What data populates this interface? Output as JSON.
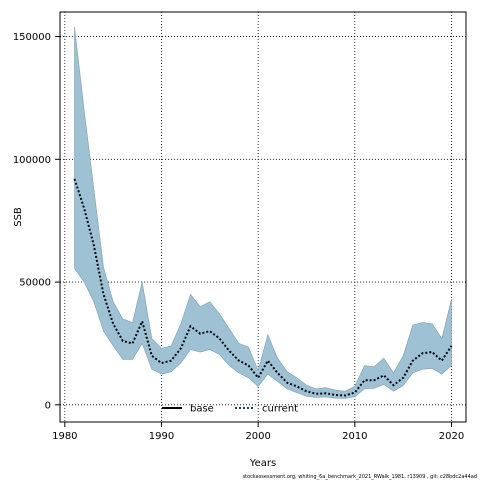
{
  "chart_data": {
    "type": "line",
    "xlabel": "Years",
    "ylabel": "SSB",
    "xlim": [
      1979.5,
      2021.5
    ],
    "ylim": [
      -7000,
      160000
    ],
    "x_ticks": [
      1980,
      1990,
      2000,
      2010,
      2020
    ],
    "y_ticks": [
      0,
      50000,
      100000,
      150000
    ],
    "x_tick_labels": [
      "1980",
      "1990",
      "2000",
      "2010",
      "2020"
    ],
    "y_tick_labels": [
      "0",
      "50000",
      "100000",
      "150000"
    ],
    "grid": true,
    "legend_position": "bottom-center",
    "legend": [
      {
        "label": "base",
        "style": "solid",
        "color": "#000000"
      },
      {
        "label": "current",
        "style": "dotted",
        "color": "#1f3f66"
      }
    ],
    "band_color": "#9fc1d4",
    "x": [
      1981,
      1982,
      1983,
      1984,
      1985,
      1986,
      1987,
      1988,
      1989,
      1990,
      1991,
      1992,
      1993,
      1994,
      1995,
      1996,
      1997,
      1998,
      1999,
      2000,
      2001,
      2002,
      2003,
      2004,
      2005,
      2006,
      2007,
      2008,
      2009,
      2010,
      2011,
      2012,
      2013,
      2014,
      2015,
      2016,
      2017,
      2018,
      2019,
      2020
    ],
    "series": [
      {
        "name": "current",
        "values": [
          92000,
          80000,
          65000,
          45000,
          33000,
          26000,
          25000,
          34000,
          20000,
          17000,
          18000,
          23000,
          32000,
          29000,
          30000,
          27000,
          22000,
          18000,
          16000,
          11000,
          18000,
          13000,
          9000,
          7500,
          5500,
          4500,
          4700,
          4000,
          3800,
          5000,
          10000,
          10000,
          12000,
          8000,
          11000,
          18000,
          21000,
          21500,
          18000,
          24000
        ]
      }
    ],
    "band": {
      "upper": [
        154000,
        120000,
        88000,
        56000,
        42000,
        35000,
        33500,
        50000,
        27000,
        23000,
        24000,
        33000,
        45000,
        40000,
        42000,
        37000,
        31000,
        25000,
        23500,
        14000,
        28500,
        19000,
        13500,
        11000,
        8000,
        6500,
        7000,
        6000,
        5500,
        7500,
        16000,
        15500,
        19000,
        13000,
        20000,
        32500,
        33500,
        33000,
        27000,
        43000
      ],
      "lower": [
        55500,
        50000,
        42000,
        30000,
        24000,
        18500,
        18500,
        25000,
        14500,
        12500,
        13500,
        17000,
        22500,
        21500,
        22500,
        20500,
        16000,
        13000,
        11000,
        7500,
        12500,
        9500,
        6500,
        5000,
        3500,
        3000,
        3200,
        2700,
        2600,
        3300,
        6500,
        6700,
        8300,
        5500,
        7800,
        13000,
        14500,
        14800,
        12500,
        16000
      ]
    },
    "footer_note": "stockassessment.org, whiting_6a_benchmark_2021_RWalk_1981, r13909 , git: c28bdc2a44ad"
  }
}
